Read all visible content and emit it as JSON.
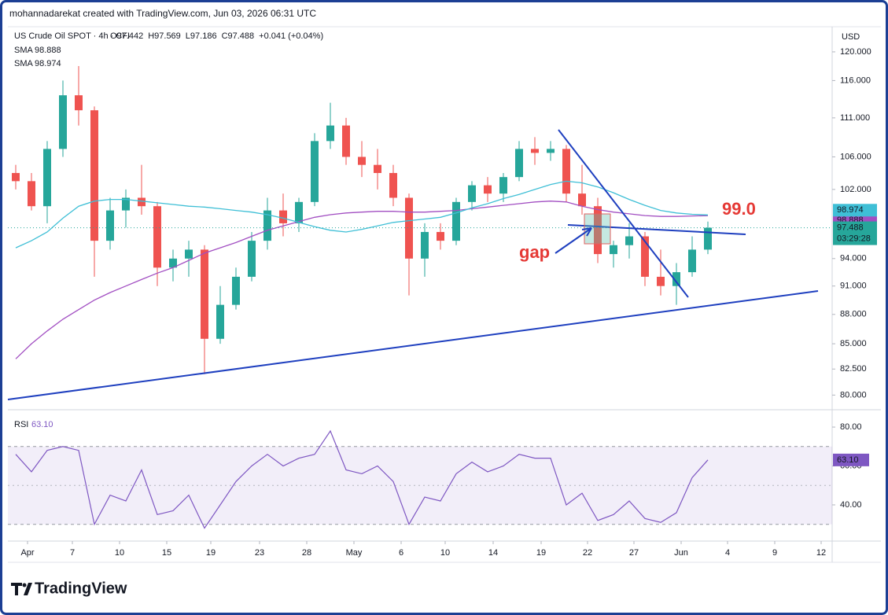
{
  "attribution": "mohannadarekat created with TradingView.com, Jun 03, 2026 06:31 UTC",
  "brand": "TradingView",
  "chart_data": [
    {
      "type": "candlestick",
      "title": "US Crude Oil SPOT · 4h · CFI",
      "quote": [
        "O97.442",
        "H97.569",
        "L97.186",
        "C97.488",
        "+0.041 (+0.04%)"
      ],
      "currency": "USD",
      "countdown": "03:29:28",
      "annotations": [
        "gap",
        "99.0"
      ],
      "up_color": "#26a69a",
      "down_color": "#ef5350",
      "log": true,
      "xlim": [
        0,
        104.8
      ],
      "xticks": [
        {
          "value": 2.5,
          "label": "Apr"
        },
        {
          "value": 8.2,
          "label": "7"
        },
        {
          "value": 14.2,
          "label": "10"
        },
        {
          "value": 20.2,
          "label": "15"
        },
        {
          "value": 25.8,
          "label": "19"
        },
        {
          "value": 32,
          "label": "23"
        },
        {
          "value": 38,
          "label": "28"
        },
        {
          "value": 44,
          "label": "May"
        },
        {
          "value": 50,
          "label": "6"
        },
        {
          "value": 55.6,
          "label": "10"
        },
        {
          "value": 61.7,
          "label": "14"
        },
        {
          "value": 67.8,
          "label": "19"
        },
        {
          "value": 73.7,
          "label": "22"
        },
        {
          "value": 79.6,
          "label": "27"
        },
        {
          "value": 85.6,
          "label": "Jun"
        },
        {
          "value": 91.5,
          "label": "4"
        },
        {
          "value": 97.5,
          "label": "9"
        },
        {
          "value": 103.4,
          "label": "12"
        }
      ],
      "ylim": [
        78.7,
        123.5
      ],
      "yticks": [
        {
          "value": 80,
          "label": "80.000"
        },
        {
          "value": 82.5,
          "label": "82.500"
        },
        {
          "value": 85,
          "label": "85.000"
        },
        {
          "value": 88,
          "label": "88.000"
        },
        {
          "value": 91,
          "label": "91.000"
        },
        {
          "value": 94,
          "label": "94.000"
        },
        {
          "value": 102,
          "label": "102.000"
        },
        {
          "value": 106,
          "label": "106.000"
        },
        {
          "value": 111,
          "label": "111.000"
        },
        {
          "value": 116,
          "label": "116.000"
        },
        {
          "value": 120,
          "label": "120.000"
        }
      ],
      "x": [
        1,
        3,
        5,
        7,
        9,
        11,
        13,
        15,
        17,
        19,
        21,
        23,
        25,
        27,
        29,
        31,
        33,
        35,
        37,
        39,
        41,
        43,
        45,
        47,
        49,
        51,
        53,
        55,
        57,
        59,
        61,
        63,
        65,
        67,
        69,
        71,
        73,
        75,
        77,
        79,
        81,
        83,
        85,
        87,
        89
      ],
      "open": [
        104,
        103,
        100,
        107,
        114,
        112,
        96,
        99.5,
        101,
        100,
        93,
        94,
        95,
        85.5,
        89,
        92,
        96,
        99.5,
        98,
        100.5,
        108,
        110,
        106,
        105,
        104,
        101,
        94,
        97,
        96,
        100.5,
        102.5,
        101.5,
        103.5,
        107,
        106.5,
        107,
        101.5,
        100,
        94.5,
        95.5,
        96.5,
        92,
        91,
        92.5,
        95
      ],
      "high": [
        105,
        104,
        108,
        116,
        118,
        112.5,
        101,
        102,
        105,
        100.5,
        95,
        96,
        95.5,
        91,
        93,
        97,
        101,
        101.5,
        101,
        109,
        113,
        111,
        108,
        107,
        105,
        101.5,
        98,
        98,
        101,
        103,
        103.5,
        104,
        108,
        108.5,
        108,
        107.5,
        105,
        101,
        96,
        98,
        97,
        95,
        93.5,
        96.5,
        98.2
      ],
      "low": [
        102,
        99.5,
        98,
        106,
        110,
        92,
        95,
        97.5,
        99,
        91,
        91.5,
        92,
        82,
        85,
        88.5,
        91.5,
        95,
        96.5,
        97,
        100,
        107,
        105,
        103.5,
        102,
        100,
        90,
        92,
        95,
        95.5,
        99.5,
        100.5,
        100.5,
        103,
        105,
        105.5,
        100.5,
        99,
        93.5,
        93,
        94,
        91,
        90,
        89,
        92,
        94.5
      ],
      "close": [
        103,
        100,
        107,
        114,
        112,
        96,
        99.5,
        101,
        100,
        93,
        94,
        95,
        85.5,
        89,
        92,
        96,
        99.5,
        98,
        100.5,
        108,
        110,
        106,
        105,
        104,
        101,
        94,
        97,
        96,
        100.5,
        102.5,
        101.5,
        103.5,
        107,
        106.5,
        107,
        101.5,
        100,
        94.5,
        95.5,
        96.5,
        92,
        91,
        92.5,
        95,
        97.488
      ],
      "series": [
        {
          "name": "SMA",
          "color": "#a24fc2",
          "values": [
            83.5,
            85,
            86.3,
            87.5,
            88.5,
            89.5,
            90.3,
            91,
            91.7,
            92.4,
            93,
            93.8,
            94.6,
            95.2,
            95.8,
            96.5,
            97.2,
            97.7,
            98.2,
            98.7,
            99,
            99.2,
            99.3,
            99.4,
            99.4,
            99.3,
            99.3,
            99.4,
            99.5,
            99.7,
            99.9,
            100.1,
            100.3,
            100.5,
            100.6,
            100.5,
            100,
            99.6,
            99.3,
            99.1,
            98.9,
            98.8,
            98.8,
            98.85,
            98.888
          ]
        },
        {
          "name": "SMA",
          "color": "#3fbfd6",
          "values": [
            95.2,
            96,
            97,
            98.6,
            100,
            100.6,
            100.8,
            100.8,
            100.6,
            100.4,
            100.2,
            100,
            99.9,
            99.7,
            99.5,
            99.3,
            99,
            98.6,
            98.1,
            97.6,
            97.2,
            97,
            97.3,
            97.7,
            98.1,
            98.3,
            98.5,
            98.7,
            99.2,
            99.8,
            100.3,
            100.9,
            101.4,
            102,
            102.6,
            103,
            102.8,
            102.3,
            101.6,
            100.8,
            100.1,
            99.5,
            99.2,
            99.05,
            98.974
          ]
        }
      ]
    },
    {
      "type": "line",
      "title": "RSI",
      "current_label": "63.10",
      "color": "#7e57c2",
      "band": [
        30,
        70
      ],
      "xlim": [
        0,
        104.8
      ],
      "ylim": [
        22.6,
        87.3
      ],
      "yticks": [
        {
          "value": 80,
          "label": "80.00"
        },
        {
          "value": 60,
          "label": "60.00"
        },
        {
          "value": 40,
          "label": "40.00"
        }
      ],
      "x": [
        1,
        3,
        5,
        7,
        9,
        11,
        13,
        15,
        17,
        19,
        21,
        23,
        25,
        27,
        29,
        31,
        33,
        35,
        37,
        39,
        41,
        43,
        45,
        47,
        49,
        51,
        53,
        55,
        57,
        59,
        61,
        63,
        65,
        67,
        69,
        71,
        73,
        75,
        77,
        79,
        81,
        83,
        85,
        87,
        89
      ],
      "values": [
        66,
        57,
        68,
        70,
        68,
        30,
        45,
        42,
        58,
        35,
        37,
        45,
        28,
        40,
        52,
        60,
        66,
        60,
        64,
        66,
        78,
        58,
        56,
        60,
        52,
        30,
        44,
        42,
        56,
        62,
        57,
        60,
        66,
        64,
        64,
        40,
        46,
        32,
        35,
        42,
        33,
        31,
        36,
        54,
        63.1
      ]
    }
  ]
}
